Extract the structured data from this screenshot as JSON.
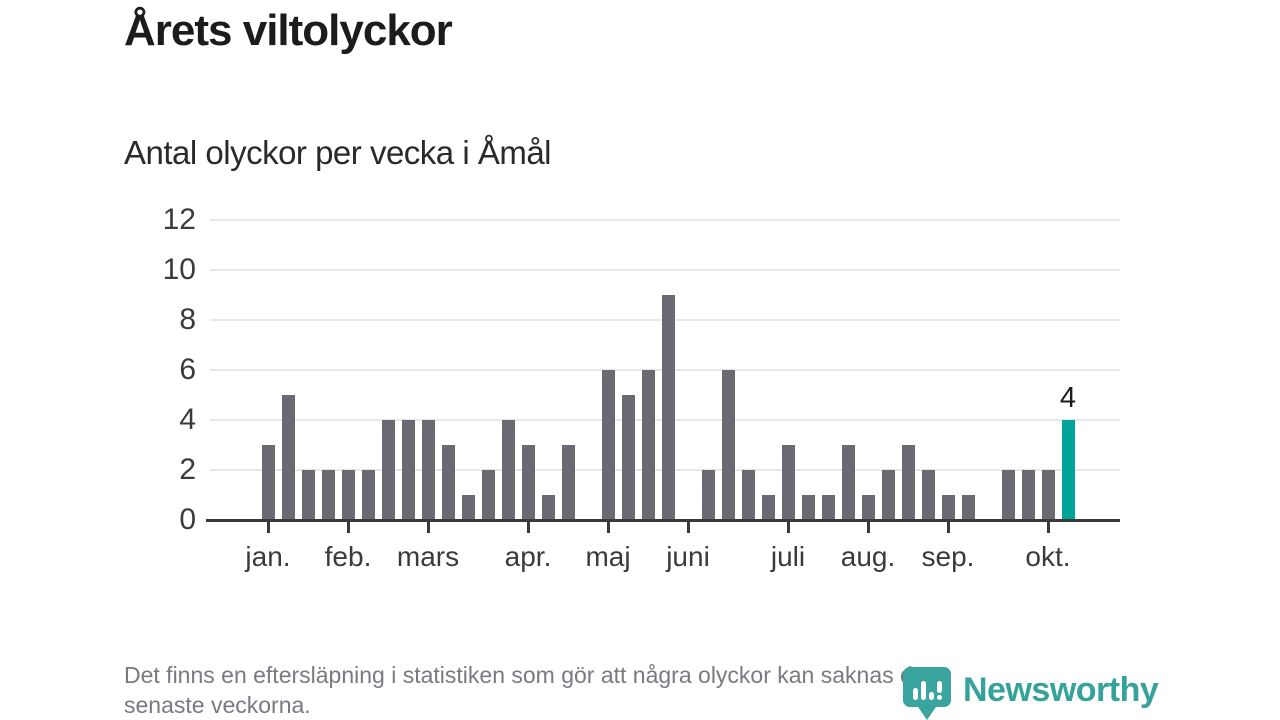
{
  "header": {
    "title": "Årets viltolyckor",
    "subtitle": "Antal olyckor per vecka i Åmål"
  },
  "chart_data": {
    "type": "bar",
    "title": "Årets viltolyckor",
    "subtitle": "Antal olyckor per vecka i Åmål",
    "xlabel": "",
    "ylabel": "",
    "x_unit": "vecka (januari till oktober)",
    "ylim": [
      0,
      12
    ],
    "yticks": [
      0,
      2,
      4,
      6,
      8,
      10,
      12
    ],
    "grid": "horizontal",
    "legend": "none",
    "bar_color": "#6b6a72",
    "months": [
      {
        "label": "jan.",
        "week": 1
      },
      {
        "label": "feb.",
        "week": 5
      },
      {
        "label": "mars",
        "week": 9
      },
      {
        "label": "apr.",
        "week": 14
      },
      {
        "label": "maj",
        "week": 18
      },
      {
        "label": "juni",
        "week": 22
      },
      {
        "label": "juli",
        "week": 27
      },
      {
        "label": "aug.",
        "week": 31
      },
      {
        "label": "sep.",
        "week": 35
      },
      {
        "label": "okt.",
        "week": 40
      }
    ],
    "values": [
      3,
      5,
      2,
      2,
      2,
      2,
      4,
      4,
      4,
      3,
      1,
      2,
      4,
      3,
      1,
      3,
      0,
      6,
      5,
      6,
      9,
      0,
      2,
      6,
      2,
      1,
      3,
      1,
      1,
      3,
      1,
      2,
      3,
      2,
      1,
      1,
      0,
      2,
      2,
      2,
      4
    ],
    "highlight": {
      "index": 40,
      "value": 4,
      "label": "4",
      "color": "#00a49a"
    }
  },
  "footnote": {
    "lines": [
      "Det finns en eftersläpning i statistiken som gör att några olyckor kan saknas de",
      "senaste veckorna."
    ]
  },
  "branding": {
    "logo_text": "Newsworthy",
    "logo_color": "#35a29b"
  },
  "colors": {
    "background": "#ffffff",
    "bar": "#6b6a72",
    "highlight": "#00a49a",
    "gridline": "#e7e7e7",
    "axis": "#3a3a3a",
    "title_text": "#1d1c1a",
    "footnote_text": "#7a7982"
  }
}
